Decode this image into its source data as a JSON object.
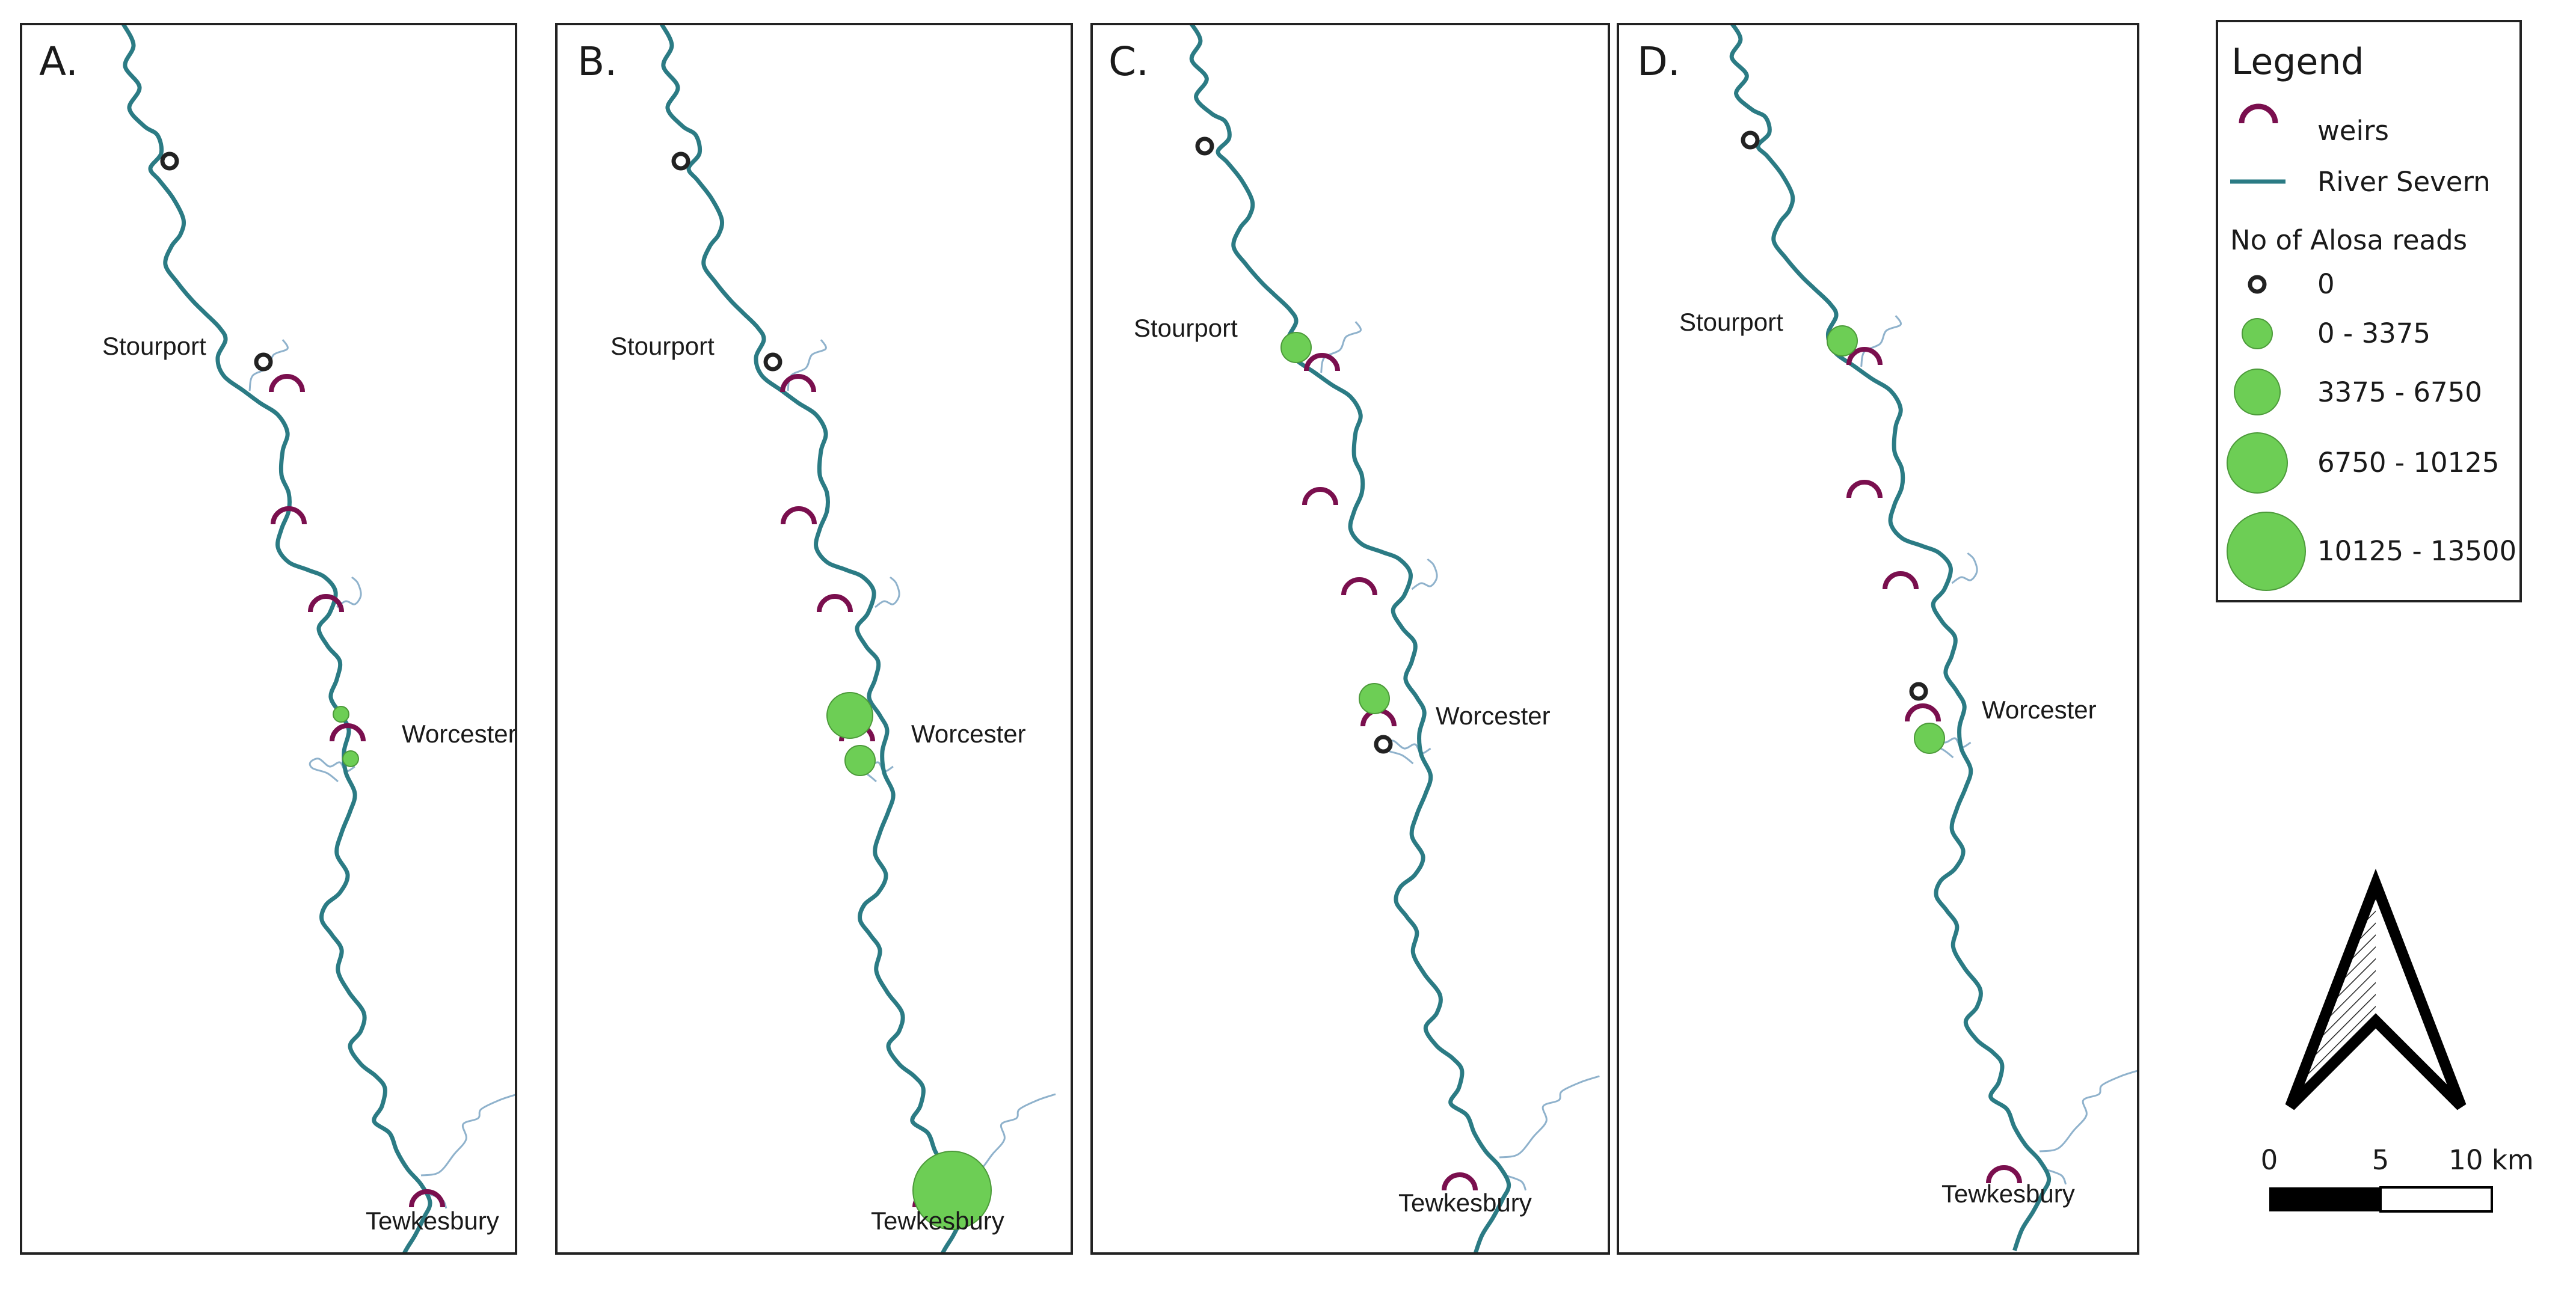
{
  "panels": [
    {
      "label": "A.",
      "places": [
        "Stourport",
        "Worcester",
        "Tewkesbury"
      ]
    },
    {
      "label": "B.",
      "places": [
        "Stourport",
        "Worcester",
        "Tewkesbury"
      ]
    },
    {
      "label": "C.",
      "places": [
        "Stourport",
        "Worcester",
        "Tewkesbury"
      ]
    },
    {
      "label": "D.",
      "places": [
        "Stourport",
        "Worcester",
        "Tewkesbury"
      ]
    }
  ],
  "legend": {
    "title": "Legend",
    "weirs_label": "weirs",
    "river_label": "River Severn",
    "reads_title": "No of Alosa reads",
    "classes": [
      "0",
      "0 - 3375",
      "3375 - 6750",
      "6750 - 10125",
      "10125 - 13500"
    ]
  },
  "scalebar": {
    "ticks": [
      "0",
      "5",
      "10 km"
    ]
  },
  "colors": {
    "river": "#2b7b84",
    "tributary": "#8fb2cc",
    "weir": "#7a0f4e",
    "circle_fill": "#6dce55",
    "circle_stroke": "#4c9a3a",
    "zero_marker": "#222222"
  }
}
